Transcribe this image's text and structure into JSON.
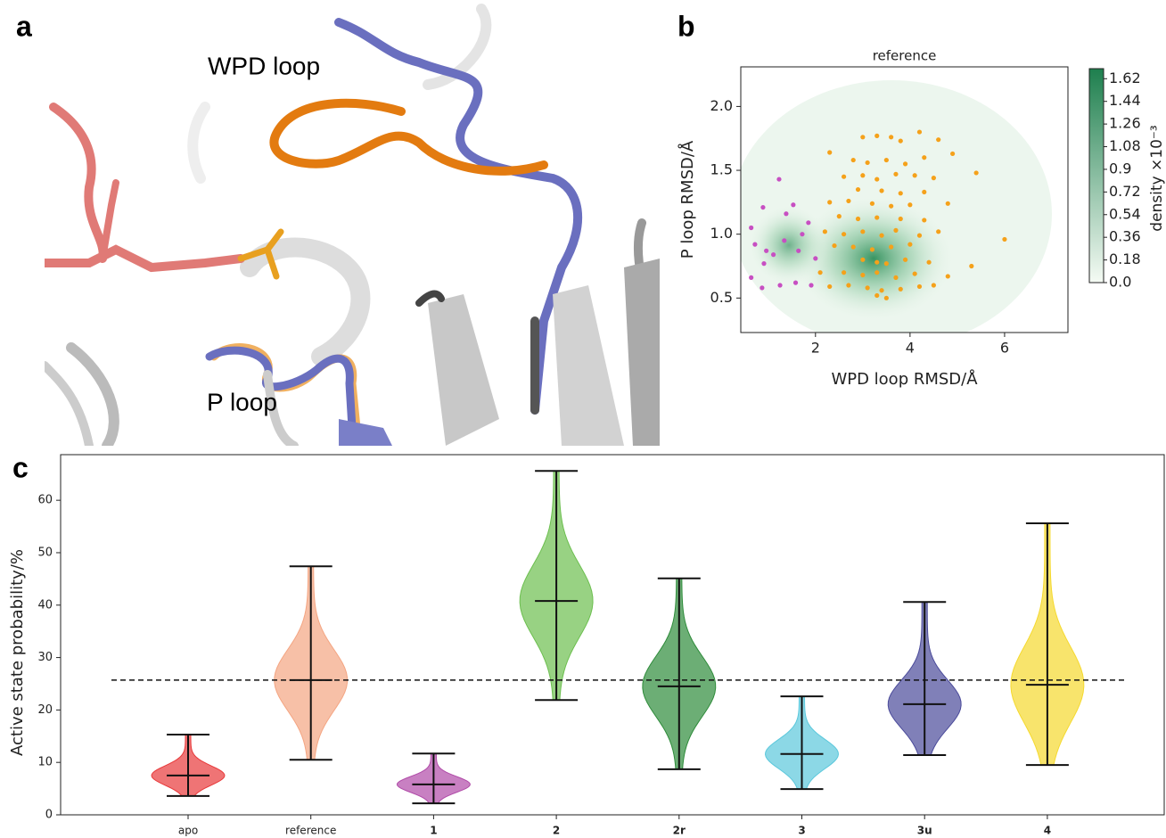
{
  "panel_labels": [
    "a",
    "b",
    "c"
  ],
  "annotations": [
    "WPD loop",
    "P loop"
  ],
  "chart_data": [
    {
      "type": "scatter",
      "title": "reference",
      "x_label": "WPD loop RMSD/Å",
      "y_label": "P loop RMSD/Å",
      "xlim": [
        0.42,
        7.34
      ],
      "ylim": [
        0.23,
        2.31
      ],
      "xticks": [
        2,
        4,
        6
      ],
      "yticks": [
        0.5,
        {
          "value": 1,
          "label": "1.0"
        },
        1.5,
        {
          "value": 2,
          "label": "2.0"
        }
      ],
      "series": [
        {
          "color": "#c74fc2",
          "x": [
            1.23,
            0.89,
            0.64,
            0.72,
            0.96,
            0.91,
            0.64,
            0.87,
            1.25,
            1.58,
            1.91,
            1.11,
            1.34,
            1.72,
            1.38,
            1.64,
            2.0,
            1.85,
            1.53
          ],
          "values": [
            1.43,
            1.21,
            1.05,
            0.92,
            0.87,
            0.77,
            0.66,
            0.58,
            0.6,
            0.62,
            0.6,
            0.84,
            0.95,
            1.0,
            1.16,
            0.87,
            0.81,
            1.09,
            1.23
          ]
        },
        {
          "color": "#f5a11a",
          "x": [
            2.3,
            3.0,
            3.3,
            3.6,
            3.8,
            4.2,
            4.6,
            2.8,
            3.1,
            3.5,
            3.9,
            4.3,
            4.9,
            2.6,
            3.0,
            3.3,
            3.7,
            4.1,
            4.5,
            5.4,
            2.9,
            3.4,
            3.8,
            4.3,
            2.3,
            2.7,
            3.2,
            3.6,
            4.0,
            4.8,
            2.5,
            2.9,
            3.3,
            3.8,
            4.3,
            2.2,
            2.6,
            3.0,
            3.4,
            3.7,
            4.2,
            4.6,
            6.0,
            2.4,
            2.8,
            3.2,
            3.6,
            4.0,
            3.0,
            3.3,
            3.5,
            3.9,
            4.4,
            5.3,
            2.1,
            2.6,
            3.0,
            3.3,
            3.7,
            4.1,
            4.8,
            2.3,
            2.7,
            3.1,
            3.4,
            3.8,
            4.2,
            4.5,
            3.3,
            3.5
          ],
          "values": [
            1.64,
            1.76,
            1.77,
            1.76,
            1.73,
            1.8,
            1.74,
            1.58,
            1.56,
            1.58,
            1.55,
            1.6,
            1.63,
            1.45,
            1.46,
            1.43,
            1.47,
            1.46,
            1.44,
            1.48,
            1.35,
            1.34,
            1.32,
            1.33,
            1.25,
            1.26,
            1.24,
            1.22,
            1.23,
            1.24,
            1.14,
            1.12,
            1.13,
            1.12,
            1.11,
            1.02,
            1.0,
            1.02,
            0.99,
            1.03,
            0.99,
            1.02,
            0.96,
            0.91,
            0.9,
            0.88,
            0.9,
            0.92,
            0.8,
            0.78,
            0.77,
            0.8,
            0.78,
            0.75,
            0.7,
            0.7,
            0.68,
            0.7,
            0.66,
            0.69,
            0.67,
            0.59,
            0.6,
            0.58,
            0.56,
            0.57,
            0.59,
            0.6,
            0.52,
            0.5
          ]
        }
      ],
      "colorbar": {
        "label": "density ×10⁻³",
        "lim": [
          0,
          1.7
        ],
        "colors": [
          "#f5fbf4",
          "#1e7f4e"
        ],
        "ticks": [
          {
            "value": 0,
            "label": "0.0"
          },
          0.18,
          0.36,
          0.54,
          0.72,
          0.9,
          1.08,
          1.26,
          1.44,
          1.62
        ]
      }
    },
    {
      "type": "violin",
      "y_label": "Active state probability/%",
      "categories": [
        "apo",
        "reference",
        "1",
        "2",
        "2r",
        "3",
        "3u",
        "4"
      ],
      "category_bold": [
        false,
        false,
        true,
        true,
        true,
        true,
        true,
        true
      ],
      "colors": [
        "#e8393a",
        "#f4a582",
        "#b04aa8",
        "#6cbf4f",
        "#2e8b3a",
        "#5bc8dc",
        "#4a4a9a",
        "#f5d92e"
      ],
      "min": [
        3.6,
        10.5,
        2.2,
        21.9,
        8.7,
        4.9,
        11.4,
        9.5
      ],
      "median": [
        7.5,
        25.7,
        5.8,
        40.8,
        24.5,
        11.6,
        21.1,
        24.8
      ],
      "max": [
        15.3,
        47.4,
        11.7,
        65.6,
        45.1,
        22.6,
        40.6,
        55.6
      ],
      "reference_line": 25.7,
      "ylim": [
        0,
        68.7
      ],
      "yticks": [
        0,
        10,
        20,
        30,
        40,
        50,
        60
      ]
    }
  ]
}
